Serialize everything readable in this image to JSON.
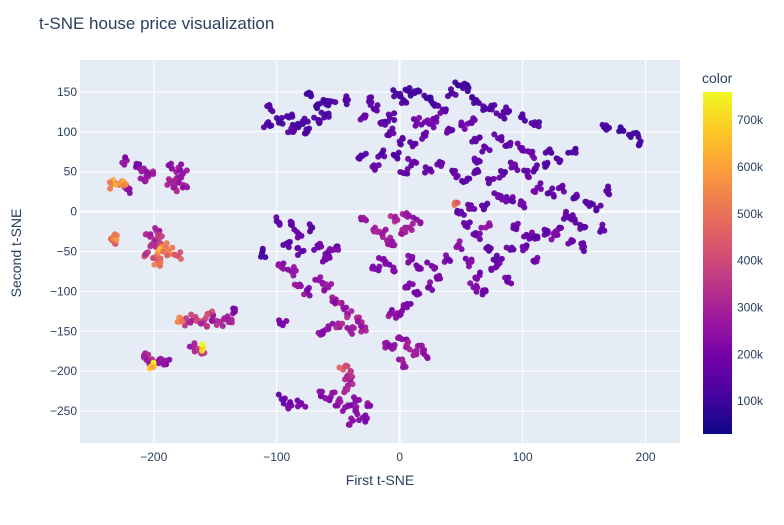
{
  "chart_data": {
    "type": "scatter",
    "title": "t-SNE house price visualization",
    "xlabel": "First t-SNE",
    "ylabel": "Second t-SNE",
    "xlim": [
      -260,
      228
    ],
    "ylim": [
      -290,
      190
    ],
    "x_ticks": [
      -200,
      -100,
      0,
      100,
      200
    ],
    "y_ticks": [
      -250,
      -200,
      -150,
      -100,
      -50,
      0,
      50,
      100,
      150
    ],
    "x_tick_labels": [
      "−200",
      "−100",
      "0",
      "100",
      "200"
    ],
    "y_tick_labels": [
      "−250",
      "−200",
      "−150",
      "−100",
      "−50",
      "0",
      "50",
      "100",
      "150"
    ],
    "grid": true,
    "colorbar": {
      "title": "color",
      "range": [
        30000,
        760000
      ],
      "ticks": [
        100000,
        200000,
        300000,
        400000,
        500000,
        600000,
        700000
      ],
      "tick_labels": [
        "100k",
        "200k",
        "300k",
        "400k",
        "500k",
        "600k",
        "700k"
      ],
      "colorscale": [
        "#0d0887",
        "#46039f",
        "#7201a8",
        "#9c179e",
        "#bd3786",
        "#d8576b",
        "#ed7953",
        "#fb9f3a",
        "#fdca26",
        "#f0f921"
      ]
    },
    "colors": {
      "plot_bg": "#e5ecf6",
      "grid": "#ffffff",
      "text": "#2a3f5f"
    },
    "points": [
      [
        -108,
        110,
        120000
      ],
      [
        -98,
        114,
        115000
      ],
      [
        -90,
        118,
        125000
      ],
      [
        -85,
        108,
        110000
      ],
      [
        -78,
        112,
        130000
      ],
      [
        -72,
        145,
        100000
      ],
      [
        -68,
        132,
        105000
      ],
      [
        -62,
        140,
        110000
      ],
      [
        -55,
        138,
        120000
      ],
      [
        -60,
        122,
        115000
      ],
      [
        -66,
        115,
        125000
      ],
      [
        -75,
        100,
        120000
      ],
      [
        -88,
        100,
        135000
      ],
      [
        -105,
        128,
        140000
      ],
      [
        -42,
        140,
        130000
      ],
      [
        -30,
        118,
        180000
      ],
      [
        -20,
        128,
        160000
      ],
      [
        -15,
        110,
        150000
      ],
      [
        -8,
        118,
        140000
      ],
      [
        -25,
        138,
        150000
      ],
      [
        -3,
        148,
        110000
      ],
      [
        3,
        140,
        120000
      ],
      [
        8,
        150,
        100000
      ],
      [
        15,
        152,
        115000
      ],
      [
        22,
        142,
        105000
      ],
      [
        27,
        135,
        120000
      ],
      [
        35,
        128,
        130000
      ],
      [
        42,
        148,
        125000
      ],
      [
        48,
        158,
        100000
      ],
      [
        56,
        155,
        110000
      ],
      [
        62,
        140,
        120000
      ],
      [
        68,
        132,
        130000
      ],
      [
        75,
        128,
        140000
      ],
      [
        82,
        120,
        130000
      ],
      [
        88,
        126,
        140000
      ],
      [
        100,
        118,
        120000
      ],
      [
        110,
        112,
        130000
      ],
      [
        -30,
        70,
        150000
      ],
      [
        -20,
        55,
        160000
      ],
      [
        -14,
        74,
        150000
      ],
      [
        -4,
        70,
        140000
      ],
      [
        4,
        48,
        170000
      ],
      [
        10,
        62,
        180000
      ],
      [
        12,
        85,
        160000
      ],
      [
        0,
        88,
        150000
      ],
      [
        -8,
        100,
        160000
      ],
      [
        14,
        112,
        190000
      ],
      [
        20,
        96,
        170000
      ],
      [
        24,
        110,
        180000
      ],
      [
        30,
        118,
        170000
      ],
      [
        40,
        104,
        160000
      ],
      [
        50,
        108,
        180000
      ],
      [
        58,
        112,
        170000
      ],
      [
        62,
        88,
        150000
      ],
      [
        70,
        80,
        160000
      ],
      [
        80,
        92,
        170000
      ],
      [
        88,
        84,
        150000
      ],
      [
        98,
        80,
        160000
      ],
      [
        108,
        70,
        170000
      ],
      [
        120,
        60,
        150000
      ],
      [
        130,
        64,
        140000
      ],
      [
        140,
        74,
        130000
      ],
      [
        122,
        78,
        150000
      ],
      [
        110,
        54,
        160000
      ],
      [
        104,
        46,
        170000
      ],
      [
        94,
        56,
        180000
      ],
      [
        84,
        46,
        150000
      ],
      [
        74,
        40,
        160000
      ],
      [
        64,
        50,
        140000
      ],
      [
        54,
        38,
        150000
      ],
      [
        44,
        48,
        160000
      ],
      [
        34,
        60,
        170000
      ],
      [
        24,
        52,
        180000
      ],
      [
        64,
        64,
        170000
      ],
      [
        112,
        30,
        190000
      ],
      [
        122,
        24,
        150000
      ],
      [
        132,
        30,
        160000
      ],
      [
        142,
        18,
        140000
      ],
      [
        152,
        12,
        150000
      ],
      [
        160,
        4,
        140000
      ],
      [
        150,
        -20,
        150000
      ],
      [
        140,
        -10,
        160000
      ],
      [
        130,
        -20,
        170000
      ],
      [
        120,
        -24,
        150000
      ],
      [
        110,
        -34,
        160000
      ],
      [
        100,
        -44,
        180000
      ],
      [
        90,
        -48,
        170000
      ],
      [
        80,
        -60,
        160000
      ],
      [
        72,
        -44,
        170000
      ],
      [
        62,
        -30,
        180000
      ],
      [
        55,
        -15,
        170000
      ],
      [
        50,
        0,
        160000
      ],
      [
        45,
        10,
        450000
      ],
      [
        58,
        8,
        180000
      ],
      [
        70,
        8,
        160000
      ],
      [
        80,
        18,
        180000
      ],
      [
        90,
        14,
        170000
      ],
      [
        100,
        8,
        180000
      ],
      [
        95,
        -20,
        170000
      ],
      [
        70,
        -20,
        260000
      ],
      [
        48,
        -42,
        230000
      ],
      [
        38,
        -60,
        200000
      ],
      [
        56,
        -64,
        210000
      ],
      [
        65,
        -80,
        200000
      ],
      [
        78,
        -70,
        200000
      ],
      [
        88,
        -88,
        190000
      ],
      [
        70,
        -100,
        190000
      ],
      [
        60,
        -95,
        210000
      ],
      [
        126,
        -30,
        200000
      ],
      [
        135,
        -4,
        170000
      ],
      [
        140,
        -38,
        180000
      ],
      [
        150,
        -44,
        160000
      ],
      [
        112,
        -58,
        190000
      ],
      [
        104,
        -30,
        180000
      ],
      [
        165,
        -22,
        150000
      ],
      [
        168,
        26,
        150000
      ],
      [
        180,
        104,
        90000
      ],
      [
        190,
        98,
        100000
      ],
      [
        196,
        88,
        110000
      ],
      [
        168,
        108,
        120000
      ],
      [
        -100,
        -12,
        150000
      ],
      [
        -88,
        -15,
        160000
      ],
      [
        -82,
        -28,
        170000
      ],
      [
        -72,
        -20,
        150000
      ],
      [
        -66,
        -45,
        180000
      ],
      [
        -58,
        -50,
        200000
      ],
      [
        -50,
        -48,
        210000
      ],
      [
        -60,
        -60,
        190000
      ],
      [
        -80,
        -50,
        160000
      ],
      [
        -92,
        -40,
        170000
      ],
      [
        -112,
        -52,
        120000
      ],
      [
        -96,
        -70,
        230000
      ],
      [
        -88,
        -75,
        240000
      ],
      [
        -84,
        -92,
        250000
      ],
      [
        -75,
        -100,
        230000
      ],
      [
        -66,
        -86,
        250000
      ],
      [
        -58,
        -95,
        250000
      ],
      [
        -52,
        -110,
        240000
      ],
      [
        -46,
        -120,
        270000
      ],
      [
        -42,
        -130,
        300000
      ],
      [
        -50,
        -140,
        280000
      ],
      [
        -58,
        -145,
        260000
      ],
      [
        -66,
        -152,
        250000
      ],
      [
        -40,
        -150,
        270000
      ],
      [
        -34,
        -138,
        290000
      ],
      [
        -28,
        -145,
        280000
      ],
      [
        -95,
        -140,
        200000
      ],
      [
        -134,
        -125,
        220000
      ],
      [
        -28,
        -10,
        260000
      ],
      [
        -20,
        -20,
        290000
      ],
      [
        -14,
        -28,
        290000
      ],
      [
        -10,
        -36,
        280000
      ],
      [
        -4,
        -10,
        300000
      ],
      [
        5,
        -5,
        260000
      ],
      [
        14,
        -10,
        240000
      ],
      [
        8,
        -20,
        260000
      ],
      [
        2,
        -28,
        290000
      ],
      [
        -6,
        -42,
        280000
      ],
      [
        -14,
        -60,
        240000
      ],
      [
        -20,
        -72,
        210000
      ],
      [
        -5,
        -70,
        220000
      ],
      [
        10,
        -60,
        200000
      ],
      [
        16,
        -70,
        210000
      ],
      [
        26,
        -68,
        200000
      ],
      [
        30,
        -82,
        210000
      ],
      [
        24,
        -94,
        220000
      ],
      [
        14,
        -104,
        200000
      ],
      [
        6,
        -120,
        210000
      ],
      [
        0,
        -130,
        220000
      ],
      [
        -8,
        -128,
        230000
      ],
      [
        8,
        -90,
        210000
      ],
      [
        -12,
        -165,
        250000
      ],
      [
        -6,
        -172,
        240000
      ],
      [
        2,
        -160,
        230000
      ],
      [
        6,
        -168,
        290000
      ],
      [
        12,
        -176,
        270000
      ],
      [
        18,
        -168,
        250000
      ],
      [
        22,
        -182,
        260000
      ],
      [
        3,
        -190,
        250000
      ],
      [
        -96,
        -235,
        180000
      ],
      [
        -88,
        -243,
        190000
      ],
      [
        -80,
        -240,
        190000
      ],
      [
        -64,
        -230,
        220000
      ],
      [
        -56,
        -232,
        230000
      ],
      [
        -50,
        -238,
        260000
      ],
      [
        -44,
        -245,
        240000
      ],
      [
        -36,
        -238,
        240000
      ],
      [
        -26,
        -240,
        260000
      ],
      [
        -46,
        -198,
        450000
      ],
      [
        -42,
        -205,
        320000
      ],
      [
        -40,
        -212,
        300000
      ],
      [
        -44,
        -222,
        280000
      ],
      [
        -36,
        -250,
        230000
      ],
      [
        -30,
        -258,
        230000
      ],
      [
        -38,
        -262,
        220000
      ],
      [
        -222,
        64,
        240000
      ],
      [
        -214,
        60,
        220000
      ],
      [
        -208,
        54,
        250000
      ],
      [
        -204,
        47,
        270000
      ],
      [
        -208,
        40,
        260000
      ],
      [
        -222,
        28,
        240000
      ],
      [
        -228,
        34,
        260000
      ],
      [
        -234,
        34,
        560000
      ],
      [
        -226,
        38,
        540000
      ],
      [
        -188,
        58,
        260000
      ],
      [
        -180,
        55,
        270000
      ],
      [
        -176,
        48,
        260000
      ],
      [
        -180,
        40,
        280000
      ],
      [
        -186,
        36,
        290000
      ],
      [
        -184,
        30,
        300000
      ],
      [
        -176,
        32,
        280000
      ],
      [
        -234,
        -36,
        500000
      ],
      [
        -230,
        -30,
        520000
      ],
      [
        -206,
        -28,
        300000
      ],
      [
        -198,
        -24,
        320000
      ],
      [
        -196,
        -35,
        360000
      ],
      [
        -200,
        -42,
        340000
      ],
      [
        -206,
        -52,
        380000
      ],
      [
        -200,
        -58,
        440000
      ],
      [
        -196,
        -64,
        470000
      ],
      [
        -188,
        -50,
        520000
      ],
      [
        -180,
        -56,
        400000
      ],
      [
        -194,
        -48,
        600000
      ],
      [
        -190,
        -45,
        560000
      ],
      [
        -172,
        -138,
        320000
      ],
      [
        -166,
        -132,
        380000
      ],
      [
        -160,
        -140,
        330000
      ],
      [
        -152,
        -132,
        300000
      ],
      [
        -146,
        -138,
        320000
      ],
      [
        -140,
        -135,
        300000
      ],
      [
        -156,
        -128,
        400000
      ],
      [
        -178,
        -134,
        500000
      ],
      [
        -168,
        -170,
        300000
      ],
      [
        -162,
        -176,
        340000
      ],
      [
        -160,
        -170,
        740000
      ],
      [
        -208,
        -183,
        330000
      ],
      [
        -202,
        -186,
        300000
      ],
      [
        -196,
        -190,
        260000
      ],
      [
        -200,
        -194,
        720000
      ],
      [
        -190,
        -191,
        220000
      ]
    ]
  }
}
